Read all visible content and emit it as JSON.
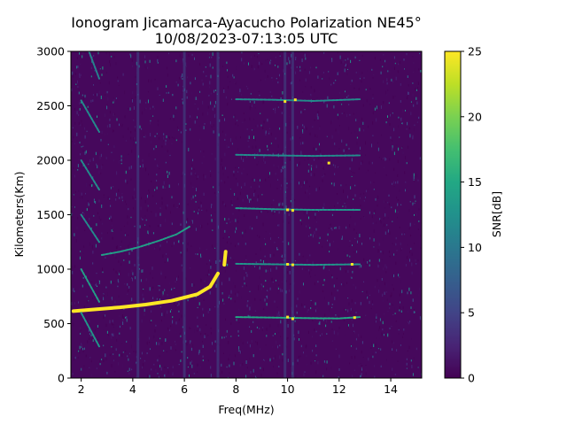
{
  "chart_data": {
    "type": "heatmap",
    "title": [
      "Ionogram Jicamarca-Ayacucho Polarization NE45°",
      "10/08/2023-07:13:05 UTC"
    ],
    "xlabel": "Freq(MHz)",
    "ylabel": "Kilometers(Km)",
    "xlim": [
      1.6,
      15.2
    ],
    "ylim": [
      0,
      3000
    ],
    "x_ticks": [
      2,
      4,
      6,
      8,
      10,
      12,
      14
    ],
    "y_ticks": [
      0,
      500,
      1000,
      1500,
      2000,
      2500,
      3000
    ],
    "colorbar": {
      "label": "SNR[dB]",
      "range": [
        0,
        25
      ],
      "ticks": [
        0,
        5,
        10,
        15,
        20,
        25
      ],
      "colormap": "viridis"
    },
    "traces": [
      {
        "points": [
          [
            1.7,
            615
          ],
          [
            2.5,
            630
          ],
          [
            3.5,
            650
          ],
          [
            4.5,
            675
          ],
          [
            5.5,
            710
          ],
          [
            6.5,
            770
          ],
          [
            7.0,
            840
          ],
          [
            7.3,
            960
          ]
        ],
        "snr": 25
      },
      {
        "points": [
          [
            7.55,
            1040
          ],
          [
            7.6,
            1160
          ]
        ],
        "snr": 25
      },
      {
        "points": [
          [
            2.8,
            1130
          ],
          [
            3.5,
            1160
          ],
          [
            4.2,
            1200
          ],
          [
            5.0,
            1260
          ],
          [
            5.7,
            1320
          ],
          [
            6.2,
            1390
          ]
        ],
        "snr": 14
      },
      {
        "points": [
          [
            8.0,
            560
          ],
          [
            9.5,
            555
          ],
          [
            11.0,
            550
          ],
          [
            12.0,
            548
          ],
          [
            12.8,
            560
          ]
        ],
        "snr": 15
      },
      {
        "points": [
          [
            8.0,
            1050
          ],
          [
            9.5,
            1045
          ],
          [
            11.0,
            1040
          ],
          [
            12.8,
            1045
          ]
        ],
        "snr": 13
      },
      {
        "points": [
          [
            8.0,
            1560
          ],
          [
            9.5,
            1550
          ],
          [
            11.0,
            1545
          ],
          [
            12.8,
            1545
          ]
        ],
        "snr": 13
      },
      {
        "points": [
          [
            8.0,
            2050
          ],
          [
            9.5,
            2045
          ],
          [
            11.0,
            2040
          ],
          [
            12.8,
            2045
          ]
        ],
        "snr": 12
      },
      {
        "points": [
          [
            8.0,
            2560
          ],
          [
            9.5,
            2555
          ],
          [
            11.0,
            2545
          ],
          [
            12.8,
            2560
          ]
        ],
        "snr": 12
      },
      {
        "points": [
          [
            2.0,
            600
          ],
          [
            2.7,
            290
          ]
        ],
        "snr": 13
      },
      {
        "points": [
          [
            2.0,
            1000
          ],
          [
            2.7,
            700
          ]
        ],
        "snr": 14
      },
      {
        "points": [
          [
            2.0,
            1500
          ],
          [
            2.7,
            1250
          ]
        ],
        "snr": 12
      },
      {
        "points": [
          [
            2.0,
            2000
          ],
          [
            2.7,
            1730
          ]
        ],
        "snr": 12
      },
      {
        "points": [
          [
            2.0,
            2550
          ],
          [
            2.7,
            2260
          ]
        ],
        "snr": 12
      },
      {
        "points": [
          [
            2.3,
            3000
          ],
          [
            2.7,
            2750
          ]
        ],
        "snr": 11
      }
    ],
    "bright_spots": [
      {
        "x": 10.0,
        "y": 560
      },
      {
        "x": 10.2,
        "y": 545
      },
      {
        "x": 10.0,
        "y": 1045
      },
      {
        "x": 10.2,
        "y": 1040
      },
      {
        "x": 12.5,
        "y": 1045
      },
      {
        "x": 10.0,
        "y": 1545
      },
      {
        "x": 10.2,
        "y": 1540
      },
      {
        "x": 11.6,
        "y": 1975
      },
      {
        "x": 9.9,
        "y": 2540
      },
      {
        "x": 10.3,
        "y": 2555
      },
      {
        "x": 12.6,
        "y": 555
      }
    ]
  }
}
